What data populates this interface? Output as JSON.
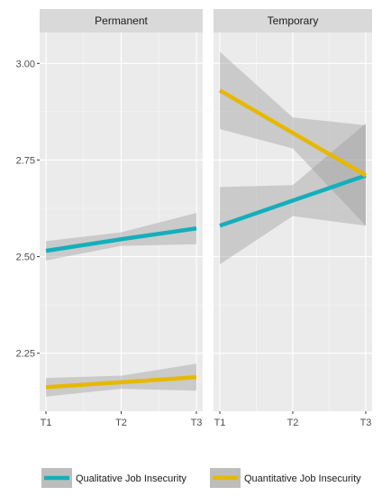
{
  "chart_data": {
    "type": "line",
    "facets": [
      "Permanent",
      "Temporary"
    ],
    "categories": [
      "T1",
      "T2",
      "T3"
    ],
    "ylim": [
      2.1,
      3.08
    ],
    "yticks": [
      2.25,
      2.5,
      2.75,
      3.0
    ],
    "ytick_labels": [
      "2.25",
      "2.50",
      "2.75",
      "3.00"
    ],
    "grid": true,
    "legend_position": "bottom",
    "series": [
      {
        "name": "Qualitative Job Insecurity",
        "color": "#13AFBB",
        "panels": [
          {
            "facet": "Permanent",
            "values": [
              2.515,
              2.545,
              2.573
            ],
            "lower": [
              2.49,
              2.528,
              2.532
            ],
            "upper": [
              2.54,
              2.563,
              2.613
            ]
          },
          {
            "facet": "Temporary",
            "values": [
              2.58,
              2.645,
              2.71
            ],
            "lower": [
              2.48,
              2.605,
              2.58
            ],
            "upper": [
              2.68,
              2.685,
              2.845
            ]
          }
        ]
      },
      {
        "name": "Quantitative Job Insecurity",
        "color": "#E7B800",
        "panels": [
          {
            "facet": "Permanent",
            "values": [
              2.162,
              2.175,
              2.188
            ],
            "lower": [
              2.138,
              2.158,
              2.153
            ],
            "upper": [
              2.186,
              2.192,
              2.223
            ]
          },
          {
            "facet": "Temporary",
            "values": [
              2.93,
              2.82,
              2.71
            ],
            "lower": [
              2.83,
              2.78,
              2.58
            ],
            "upper": [
              3.03,
              2.86,
              2.84
            ]
          }
        ]
      }
    ]
  }
}
